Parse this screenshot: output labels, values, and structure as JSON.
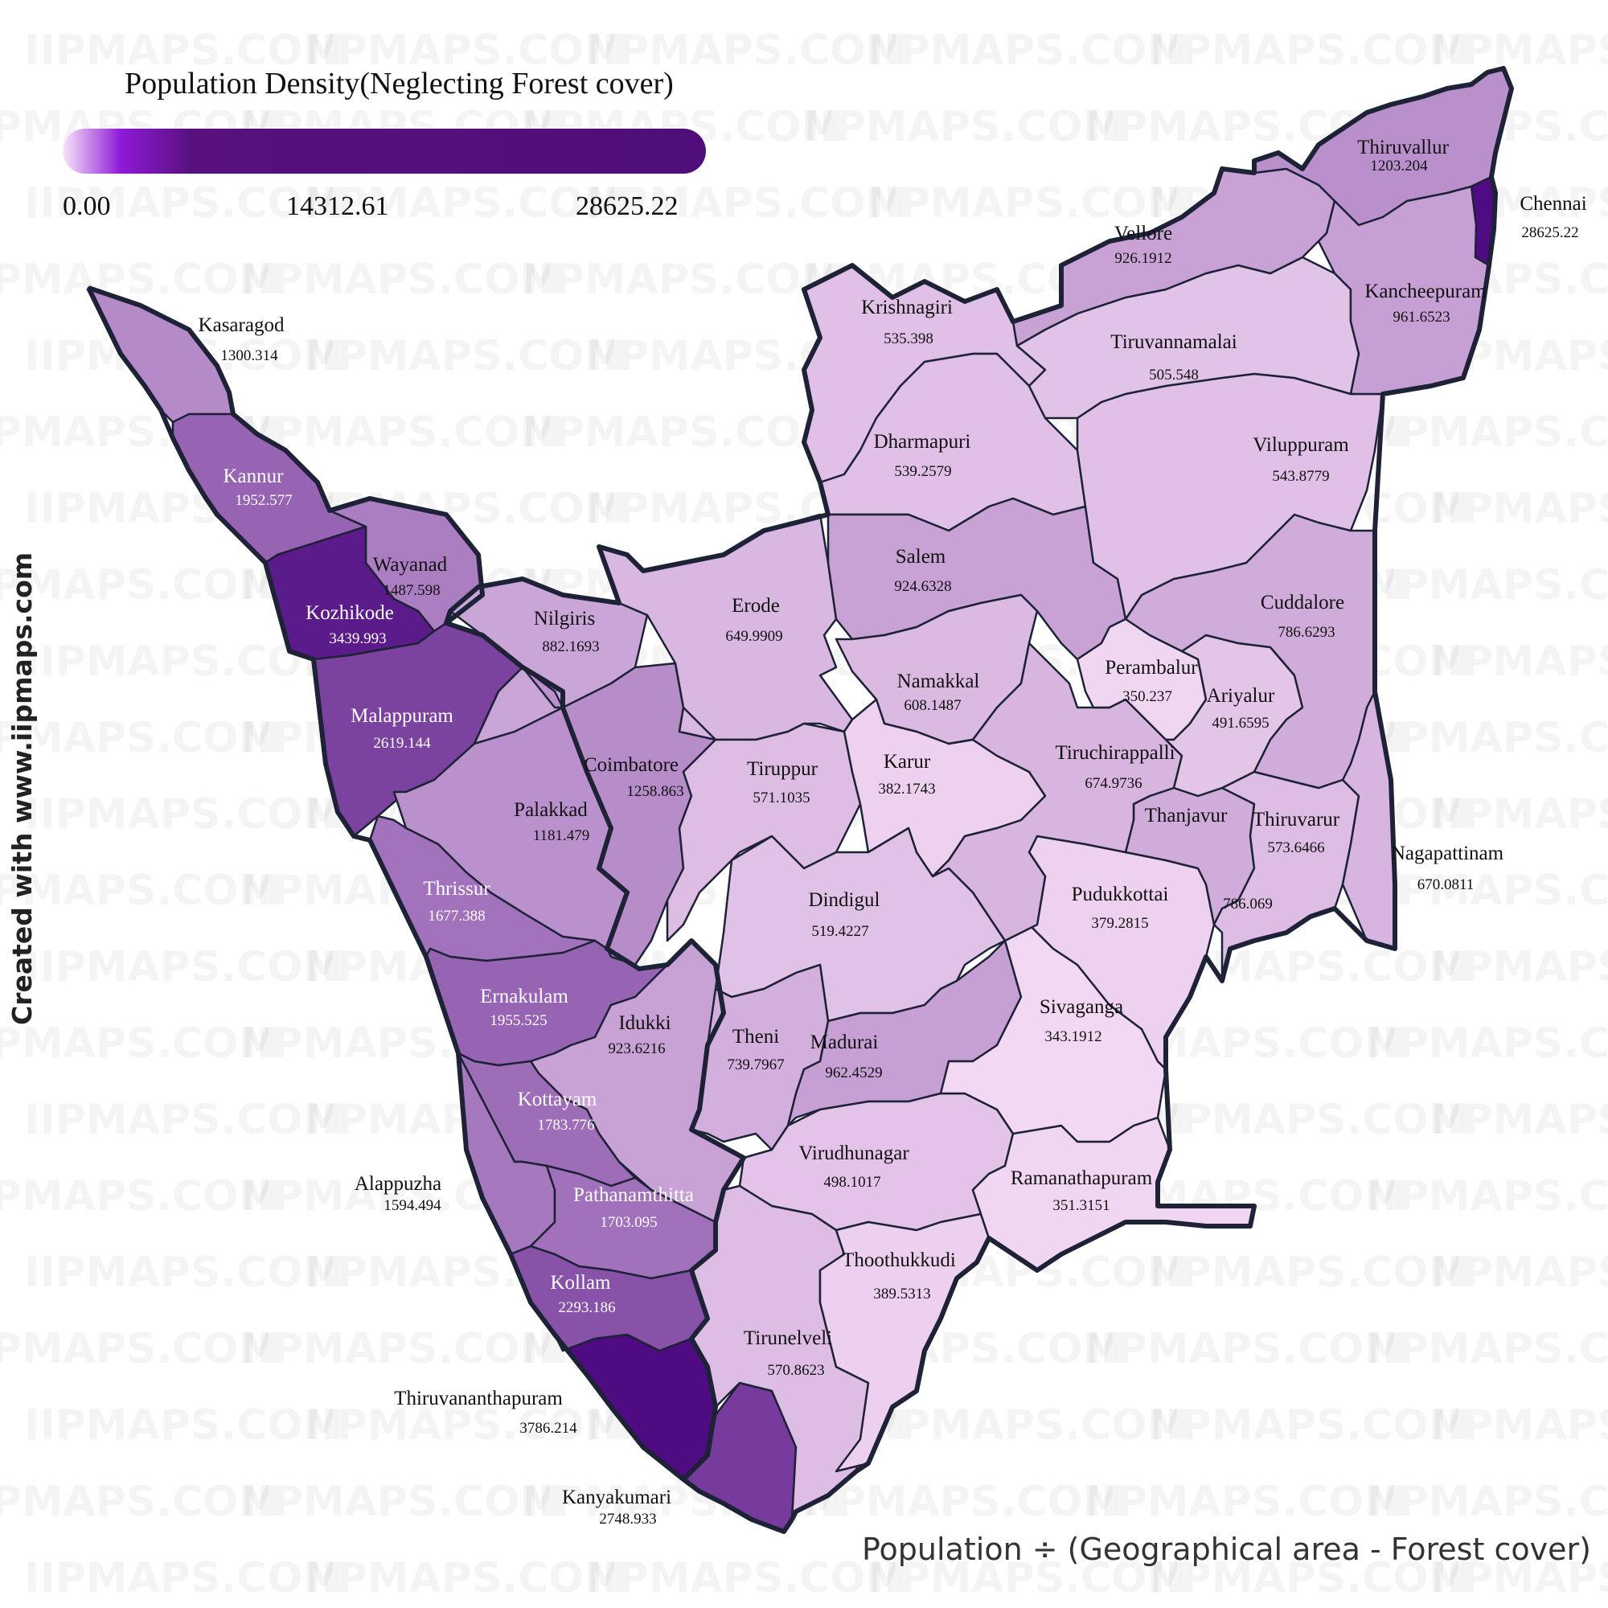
{
  "legend": {
    "title": "Population Density(Neglecting Forest cover)",
    "min_label": "0.00",
    "mid_label": "14312.61",
    "max_label": "28625.22",
    "gradient_colors": [
      "#f9e4f9",
      "#8e1ad7",
      "#58117d",
      "#4f0e7a"
    ]
  },
  "credit": "Created with www.iipmaps.com",
  "formula": "Population ÷ (Geographical area - Forest cover)",
  "watermark": "IIPMAPS.COM",
  "colors": {
    "border": "#1e2237",
    "min": "#f3d8f3",
    "max": "#4f0b82"
  },
  "districts": [
    {
      "name": "Kasaragod",
      "value": "1300.314"
    },
    {
      "name": "Kannur",
      "value": "1952.577"
    },
    {
      "name": "Wayanad",
      "value": "1487.598"
    },
    {
      "name": "Kozhikode",
      "value": "3439.993"
    },
    {
      "name": "Malappuram",
      "value": "2619.144"
    },
    {
      "name": "Palakkad",
      "value": "1181.479"
    },
    {
      "name": "Thrissur",
      "value": "1677.388"
    },
    {
      "name": "Ernakulam",
      "value": "1955.525"
    },
    {
      "name": "Idukki",
      "value": "923.6216"
    },
    {
      "name": "Kottayam",
      "value": "1783.776"
    },
    {
      "name": "Alappuzha",
      "value": "1594.494"
    },
    {
      "name": "Pathanamthitta",
      "value": "1703.095"
    },
    {
      "name": "Kollam",
      "value": "2293.186"
    },
    {
      "name": "Thiruvananthapuram",
      "value": "3786.214"
    },
    {
      "name": "Kanyakumari",
      "value": "2748.933"
    },
    {
      "name": "Nilgiris",
      "value": "882.1693"
    },
    {
      "name": "Coimbatore",
      "value": "1258.863"
    },
    {
      "name": "Erode",
      "value": "649.9909"
    },
    {
      "name": "Tiruppur",
      "value": "571.1035"
    },
    {
      "name": "Krishnagiri",
      "value": "535.398"
    },
    {
      "name": "Dharmapuri",
      "value": "539.2579"
    },
    {
      "name": "Salem",
      "value": "924.6328"
    },
    {
      "name": "Namakkal",
      "value": "608.1487"
    },
    {
      "name": "Karur",
      "value": "382.1743"
    },
    {
      "name": "Dindigul",
      "value": "519.4227"
    },
    {
      "name": "Theni",
      "value": "739.7967"
    },
    {
      "name": "Madurai",
      "value": "962.4529"
    },
    {
      "name": "Virudhunagar",
      "value": "498.1017"
    },
    {
      "name": "Tirunelveli",
      "value": "570.8623"
    },
    {
      "name": "Thoothukkudi",
      "value": "389.5313"
    },
    {
      "name": "Ramanathapuram",
      "value": "351.3151"
    },
    {
      "name": "Sivaganga",
      "value": "343.1912"
    },
    {
      "name": "Pudukkottai",
      "value": "379.2815"
    },
    {
      "name": "Thanjavur",
      "value": "786.069"
    },
    {
      "name": "Thiruvarur",
      "value": "573.6466"
    },
    {
      "name": "Nagapattinam",
      "value": "670.0811"
    },
    {
      "name": "Tiruchirappalli",
      "value": "674.9736"
    },
    {
      "name": "Perambalur",
      "value": "350.237"
    },
    {
      "name": "Ariyalur",
      "value": "491.6595"
    },
    {
      "name": "Cuddalore",
      "value": "786.6293"
    },
    {
      "name": "Viluppuram",
      "value": "543.8779"
    },
    {
      "name": "Tiruvannamalai",
      "value": "505.548"
    },
    {
      "name": "Vellore",
      "value": "926.1912"
    },
    {
      "name": "Thiruvallur",
      "value": "1203.204"
    },
    {
      "name": "Kancheepuram",
      "value": "961.6523"
    },
    {
      "name": "Chennai",
      "value": "28625.22"
    }
  ]
}
